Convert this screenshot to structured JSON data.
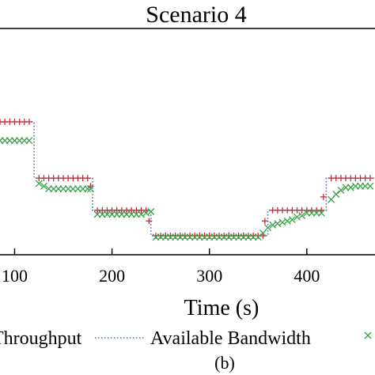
{
  "chart_data": {
    "type": "line",
    "title": "Scenario 4",
    "xlabel": "Time (s)",
    "ylabel": "",
    "caption": "(b)",
    "xlim": [
      85,
      470
    ],
    "ylim": [
      0,
      1
    ],
    "xticks": [
      100,
      200,
      300,
      400
    ],
    "grid": false,
    "legend_position": "bottom",
    "series": [
      {
        "name": "Available Bandwidth",
        "style": "dotted",
        "color": "#4a74b8",
        "x": [
          85,
          120,
          120,
          180,
          180,
          240,
          240,
          360,
          360,
          420,
          420,
          470
        ],
        "y": [
          0.86,
          0.86,
          0.44,
          0.44,
          0.2,
          0.2,
          0.01,
          0.01,
          0.2,
          0.2,
          0.44,
          0.44
        ]
      },
      {
        "name": "Throughput",
        "marker": "+",
        "color": "#c0303a",
        "x": [
          85,
          90,
          95,
          100,
          105,
          110,
          115,
          125,
          130,
          135,
          140,
          145,
          150,
          155,
          160,
          165,
          170,
          175,
          178,
          185,
          190,
          195,
          200,
          205,
          210,
          215,
          220,
          225,
          230,
          235,
          238,
          245,
          250,
          255,
          260,
          265,
          270,
          275,
          280,
          285,
          290,
          295,
          300,
          305,
          310,
          315,
          320,
          325,
          330,
          335,
          340,
          345,
          350,
          355,
          357,
          365,
          370,
          375,
          380,
          385,
          390,
          395,
          400,
          405,
          410,
          415,
          417,
          425,
          430,
          435,
          440,
          445,
          450,
          455,
          460,
          465
        ],
        "y": [
          0.86,
          0.86,
          0.86,
          0.86,
          0.86,
          0.86,
          0.86,
          0.44,
          0.44,
          0.44,
          0.44,
          0.44,
          0.44,
          0.44,
          0.44,
          0.44,
          0.44,
          0.44,
          0.38,
          0.2,
          0.2,
          0.2,
          0.2,
          0.2,
          0.2,
          0.2,
          0.2,
          0.2,
          0.2,
          0.2,
          0.12,
          0.01,
          0.01,
          0.01,
          0.01,
          0.01,
          0.01,
          0.01,
          0.01,
          0.01,
          0.01,
          0.01,
          0.01,
          0.01,
          0.01,
          0.01,
          0.01,
          0.01,
          0.01,
          0.01,
          0.01,
          0.01,
          0.01,
          0.01,
          0.12,
          0.2,
          0.2,
          0.2,
          0.2,
          0.2,
          0.2,
          0.2,
          0.2,
          0.2,
          0.2,
          0.2,
          0.3,
          0.44,
          0.44,
          0.44,
          0.44,
          0.44,
          0.44,
          0.44,
          0.44,
          0.44
        ]
      },
      {
        "name": "",
        "marker": "x",
        "color": "#3aa04a",
        "x": [
          85,
          90,
          95,
          100,
          105,
          110,
          115,
          125,
          130,
          135,
          140,
          145,
          150,
          155,
          160,
          165,
          170,
          175,
          178,
          185,
          190,
          195,
          200,
          205,
          210,
          215,
          220,
          225,
          230,
          235,
          240,
          245,
          250,
          255,
          260,
          265,
          270,
          275,
          280,
          285,
          290,
          295,
          300,
          305,
          310,
          315,
          320,
          325,
          330,
          335,
          340,
          345,
          350,
          355,
          360,
          365,
          370,
          375,
          380,
          385,
          390,
          395,
          400,
          405,
          410,
          415,
          425,
          430,
          435,
          440,
          445,
          450,
          455,
          460,
          465
        ],
        "y": [
          0.72,
          0.72,
          0.72,
          0.72,
          0.72,
          0.72,
          0.72,
          0.4,
          0.38,
          0.36,
          0.36,
          0.36,
          0.36,
          0.36,
          0.36,
          0.36,
          0.36,
          0.36,
          0.36,
          0.17,
          0.17,
          0.17,
          0.17,
          0.17,
          0.17,
          0.17,
          0.17,
          0.17,
          0.17,
          0.18,
          0.19,
          0.0,
          0.0,
          0.0,
          0.0,
          0.0,
          0.0,
          0.0,
          0.0,
          0.0,
          0.0,
          0.0,
          0.0,
          0.0,
          0.0,
          0.0,
          0.0,
          0.0,
          0.0,
          0.0,
          0.0,
          0.0,
          0.0,
          0.03,
          0.07,
          0.09,
          0.1,
          0.11,
          0.12,
          0.13,
          0.15,
          0.16,
          0.18,
          0.18,
          0.18,
          0.18,
          0.28,
          0.32,
          0.35,
          0.37,
          0.37,
          0.38,
          0.38,
          0.38,
          0.38
        ]
      }
    ]
  }
}
